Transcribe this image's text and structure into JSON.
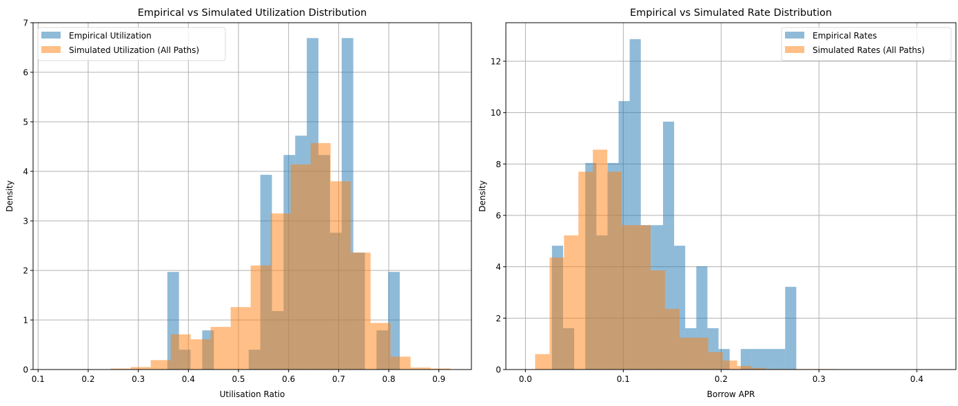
{
  "chart_data": [
    {
      "type": "bar",
      "subtype": "histogram-overlay",
      "title": "Empirical vs Simulated Utilization Distribution",
      "xlabel": "Utilisation Ratio",
      "ylabel": "Density",
      "xlim": [
        0.09,
        0.965
      ],
      "ylim": [
        0,
        7
      ],
      "xticks": [
        0.1,
        0.2,
        0.3,
        0.4,
        0.5,
        0.6,
        0.7,
        0.8,
        0.9
      ],
      "xtick_labels": [
        "0.1",
        "0.2",
        "0.3",
        "0.4",
        "0.5",
        "0.6",
        "0.7",
        "0.8",
        "0.9"
      ],
      "yticks": [
        0,
        1,
        2,
        3,
        4,
        5,
        6,
        7
      ],
      "ytick_labels": [
        "0",
        "1",
        "2",
        "3",
        "4",
        "5",
        "6",
        "7"
      ],
      "grid": true,
      "legend_position": "top-left",
      "series": [
        {
          "name": "Empirical Utilization",
          "color": "#1f77b4",
          "alpha": 0.5,
          "bin_start": 0.358,
          "bin_width": 0.0232,
          "values": [
            1.97,
            0.4,
            0,
            0.79,
            0,
            0,
            0,
            0.4,
            3.93,
            1.18,
            4.33,
            4.72,
            6.69,
            4.33,
            2.76,
            6.69,
            2.36,
            0,
            0.79,
            1.97
          ]
        },
        {
          "name": "Simulated Utilization (All Paths)",
          "color": "#ff7f0e",
          "alpha": 0.5,
          "bin_start": 0.245,
          "bin_width": 0.0399,
          "values": [
            0.02,
            0.05,
            0.19,
            0.71,
            0.61,
            0.86,
            1.26,
            2.1,
            3.15,
            4.14,
            4.57,
            3.8,
            2.36,
            0.94,
            0.26,
            0.04,
            0.02
          ]
        }
      ]
    },
    {
      "type": "bar",
      "subtype": "histogram-overlay",
      "title": "Empirical vs Simulated Rate Distribution",
      "xlabel": "Borrow APR",
      "ylabel": "Density",
      "xlim": [
        -0.02,
        0.44
      ],
      "ylim": [
        0,
        13.5
      ],
      "xticks": [
        0.0,
        0.1,
        0.2,
        0.3,
        0.4
      ],
      "xtick_labels": [
        "0.0",
        "0.1",
        "0.2",
        "0.3",
        "0.4"
      ],
      "yticks": [
        0,
        2,
        4,
        6,
        8,
        10,
        12
      ],
      "ytick_labels": [
        "0",
        "2",
        "4",
        "6",
        "8",
        "10",
        "12"
      ],
      "grid": true,
      "legend_position": "top-right",
      "series": [
        {
          "name": "Empirical Rates",
          "color": "#1f77b4",
          "alpha": 0.5,
          "bin_start": 0.0271,
          "bin_width": 0.01135,
          "values": [
            4.82,
            1.61,
            0,
            8.04,
            5.22,
            8.04,
            10.45,
            12.86,
            5.62,
            5.62,
            9.65,
            4.82,
            1.61,
            4.02,
            1.61,
            0.8,
            0,
            0.8,
            0.8,
            0.8,
            0.8,
            3.22
          ]
        },
        {
          "name": "Simulated Rates (All Paths)",
          "color": "#ff7f0e",
          "alpha": 0.5,
          "bin_start": 0.0099,
          "bin_width": 0.01475,
          "values": [
            0.6,
            4.36,
            5.22,
            7.7,
            8.56,
            7.7,
            5.62,
            5.62,
            3.86,
            2.36,
            1.24,
            1.24,
            0.68,
            0.35,
            0.14,
            0.06,
            0.02,
            0.02,
            0.02,
            0.02,
            0.02
          ]
        }
      ]
    }
  ]
}
